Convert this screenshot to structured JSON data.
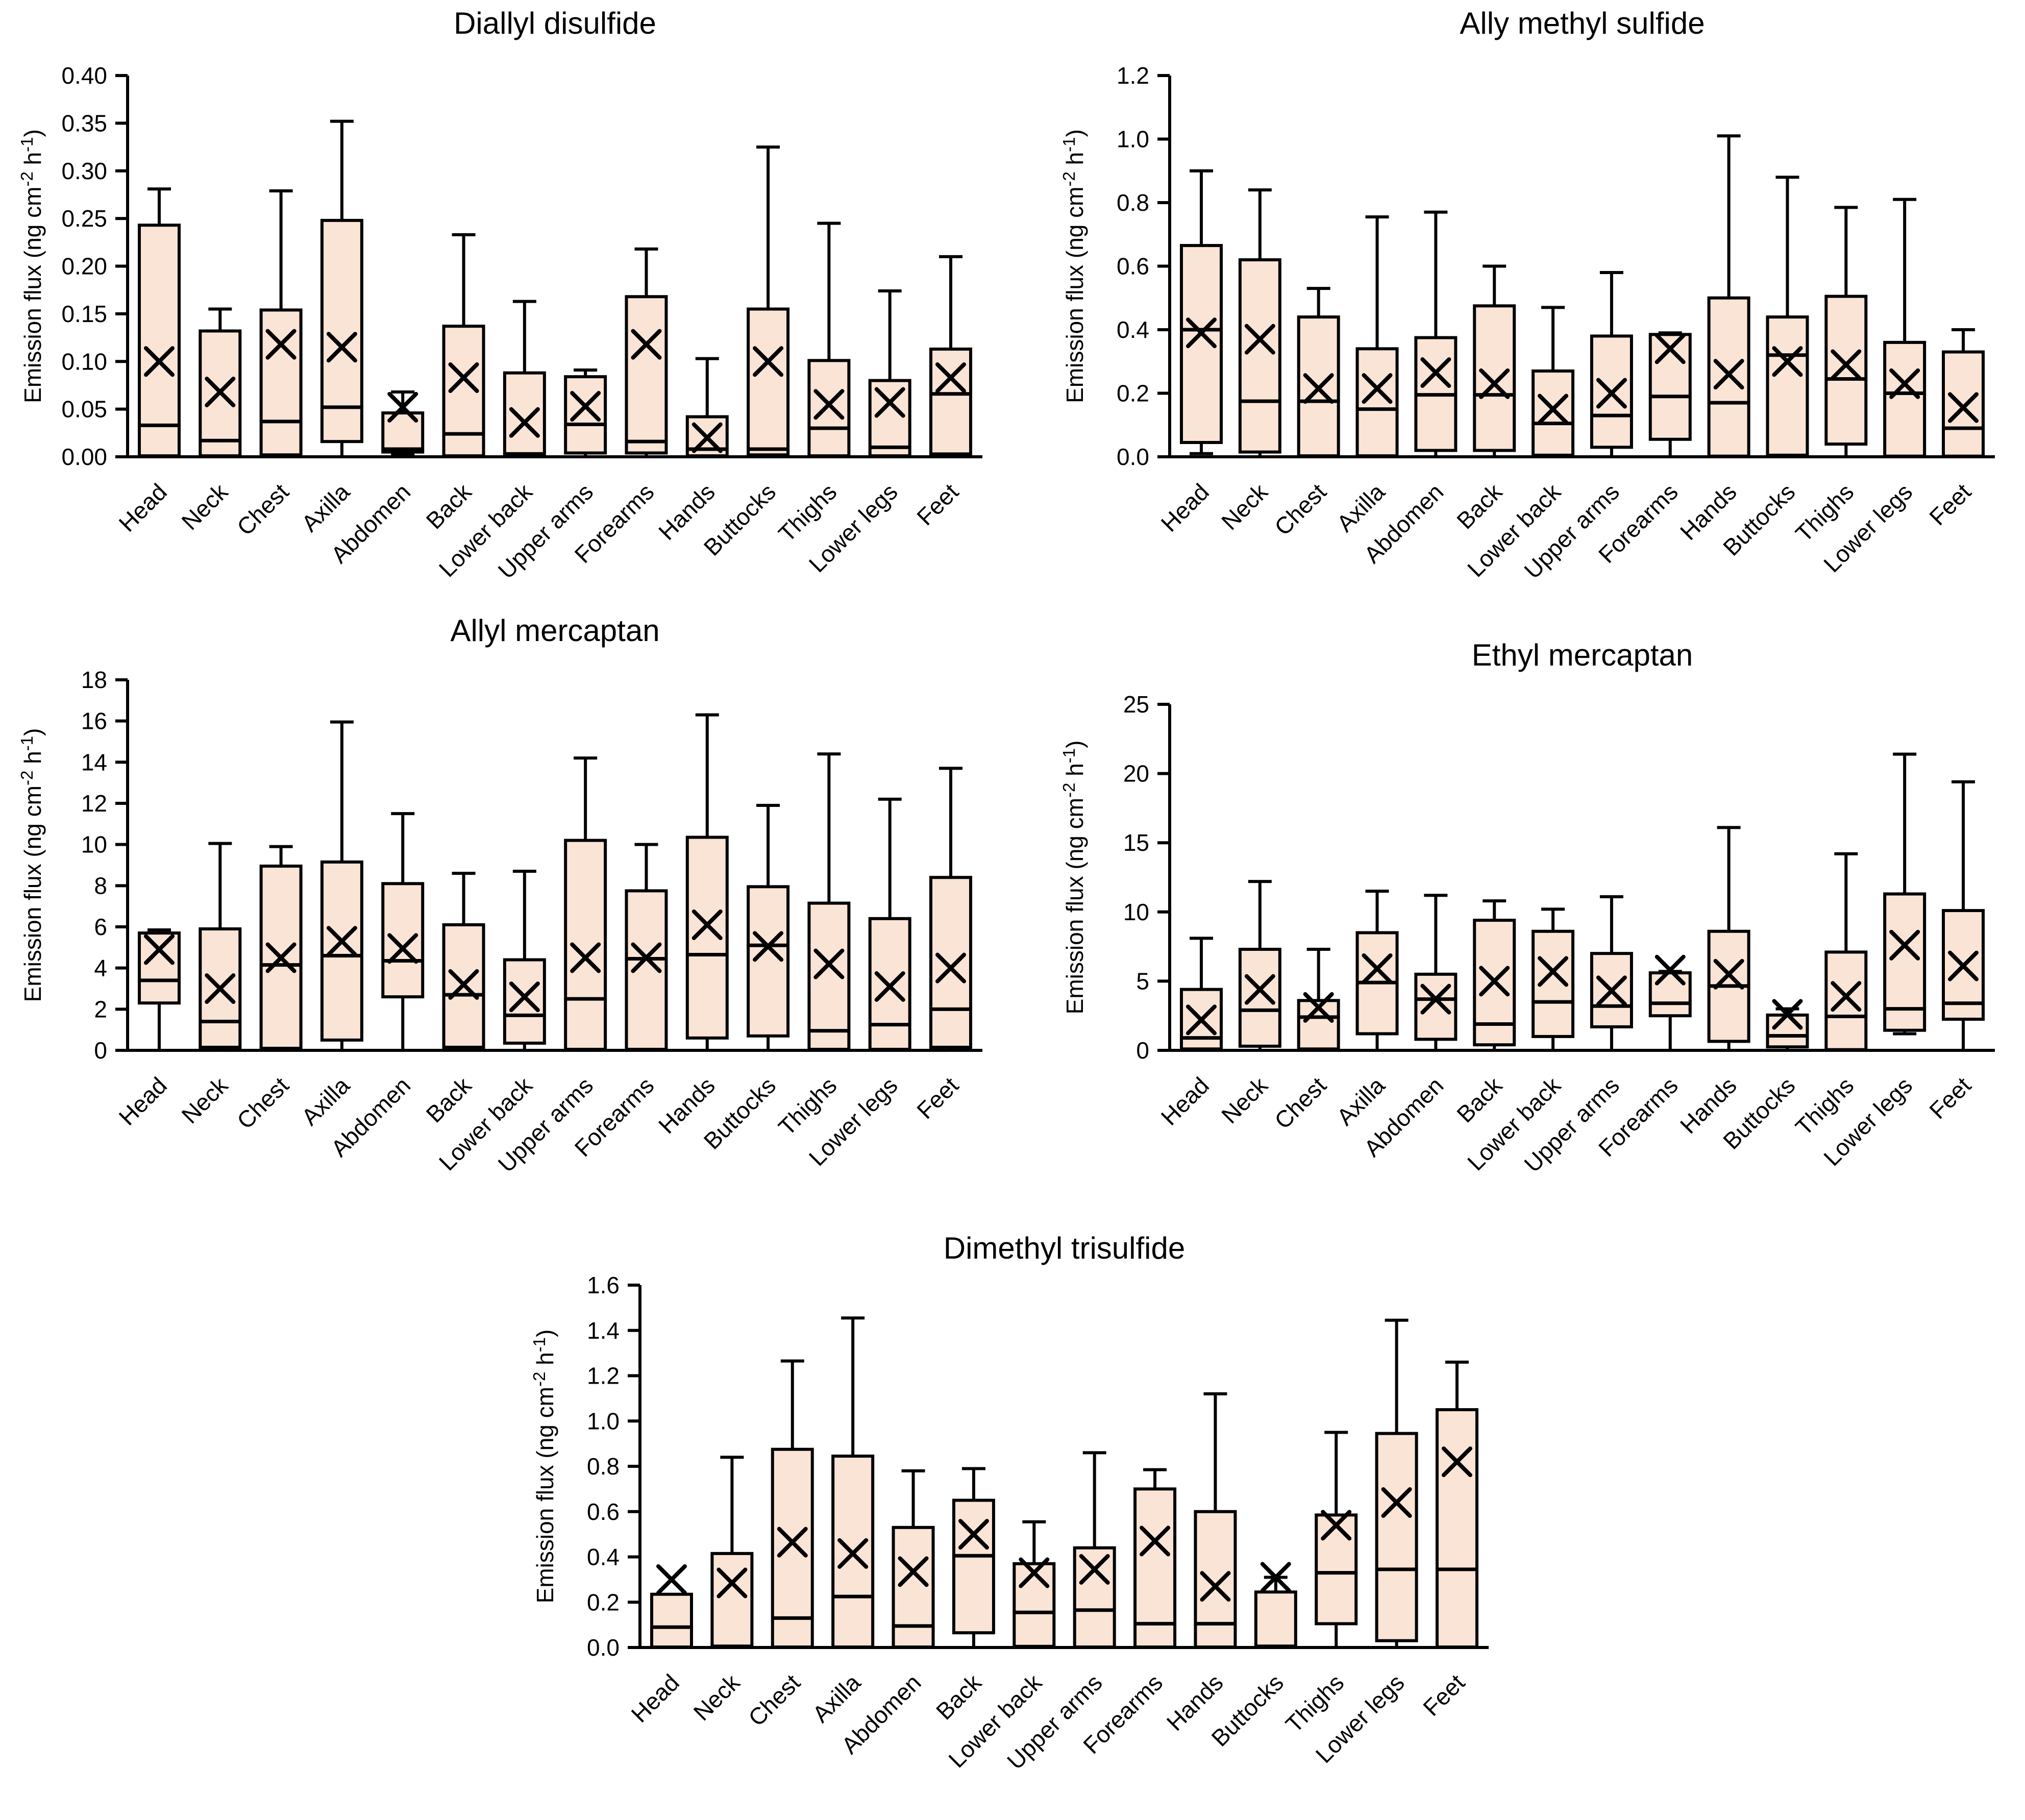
{
  "figure": {
    "background": "#ffffff",
    "box_fill_color": "#fae4d6",
    "line_color": "#000000",
    "ylabel": "Emission flux (ng cm⁻² h⁻¹)"
  },
  "chart_data": {
    "type": "box",
    "note": "Five box-and-whisker panels; each box: lo=lower whisker, q1, med=median, q3, hi=upper whisker, mean=x marker",
    "ylabel": "Emission flux (ng cm⁻² h⁻¹)",
    "categories": [
      "Head",
      "Neck",
      "Chest",
      "Axilla",
      "Abdomen",
      "Back",
      "Lower back",
      "Upper arms",
      "Forearms",
      "Hands",
      "Buttocks",
      "Thighs",
      "Lower legs",
      "Feet"
    ],
    "charts": [
      {
        "id": "diallyl-disulfide",
        "title": "Diallyl disulfide",
        "ylim": [
          0,
          0.4
        ],
        "ytick_step": 0.05,
        "ytick_decimals": 2,
        "grid": false,
        "boxes": [
          {
            "cat": "Head",
            "lo": 0,
            "q1": 0.001,
            "med": 0.033,
            "q3": 0.243,
            "hi": 0.281,
            "mean": 0.1
          },
          {
            "cat": "Neck",
            "lo": 0,
            "q1": 0.001,
            "med": 0.017,
            "q3": 0.132,
            "hi": 0.155,
            "mean": 0.068
          },
          {
            "cat": "Chest",
            "lo": 0,
            "q1": 0.002,
            "med": 0.037,
            "q3": 0.154,
            "hi": 0.279,
            "mean": 0.118
          },
          {
            "cat": "Axilla",
            "lo": 0,
            "q1": 0.016,
            "med": 0.052,
            "q3": 0.248,
            "hi": 0.352,
            "mean": 0.115
          },
          {
            "cat": "Abdomen",
            "lo": 0.002,
            "q1": 0.005,
            "med": 0.008,
            "q3": 0.046,
            "hi": 0.068,
            "mean": 0.052
          },
          {
            "cat": "Back",
            "lo": 0,
            "q1": 0.001,
            "med": 0.024,
            "q3": 0.137,
            "hi": 0.233,
            "mean": 0.083
          },
          {
            "cat": "Lower back",
            "lo": 0,
            "q1": 0.001,
            "med": 0.003,
            "q3": 0.088,
            "hi": 0.163,
            "mean": 0.036
          },
          {
            "cat": "Upper arms",
            "lo": 0,
            "q1": 0.004,
            "med": 0.034,
            "q3": 0.084,
            "hi": 0.091,
            "mean": 0.053
          },
          {
            "cat": "Forearms",
            "lo": 0,
            "q1": 0.004,
            "med": 0.016,
            "q3": 0.168,
            "hi": 0.218,
            "mean": 0.118
          },
          {
            "cat": "Hands",
            "lo": 0,
            "q1": 0.001,
            "med": 0.008,
            "q3": 0.042,
            "hi": 0.103,
            "mean": 0.02
          },
          {
            "cat": "Buttocks",
            "lo": 0,
            "q1": 0.002,
            "med": 0.008,
            "q3": 0.155,
            "hi": 0.325,
            "mean": 0.1
          },
          {
            "cat": "Thighs",
            "lo": 0,
            "q1": 0.001,
            "med": 0.03,
            "q3": 0.101,
            "hi": 0.245,
            "mean": 0.055
          },
          {
            "cat": "Lower legs",
            "lo": 0,
            "q1": 0.001,
            "med": 0.01,
            "q3": 0.08,
            "hi": 0.174,
            "mean": 0.057
          },
          {
            "cat": "Feet",
            "lo": 0,
            "q1": 0.003,
            "med": 0.066,
            "q3": 0.113,
            "hi": 0.21,
            "mean": 0.083
          }
        ]
      },
      {
        "id": "ally-methyl-sulfide",
        "title": "Ally methyl sulfide",
        "ylim": [
          0,
          1.2
        ],
        "ytick_step": 0.2,
        "ytick_decimals": 1,
        "grid": false,
        "boxes": [
          {
            "cat": "Head",
            "lo": 0.01,
            "q1": 0.045,
            "med": 0.4,
            "q3": 0.665,
            "hi": 0.9,
            "mean": 0.39
          },
          {
            "cat": "Neck",
            "lo": 0,
            "q1": 0.015,
            "med": 0.175,
            "q3": 0.62,
            "hi": 0.84,
            "mean": 0.37
          },
          {
            "cat": "Chest",
            "lo": 0,
            "q1": 0.003,
            "med": 0.175,
            "q3": 0.44,
            "hi": 0.53,
            "mean": 0.215
          },
          {
            "cat": "Axilla",
            "lo": 0,
            "q1": 0.003,
            "med": 0.15,
            "q3": 0.34,
            "hi": 0.755,
            "mean": 0.215
          },
          {
            "cat": "Abdomen",
            "lo": 0,
            "q1": 0.02,
            "med": 0.195,
            "q3": 0.375,
            "hi": 0.77,
            "mean": 0.265
          },
          {
            "cat": "Back",
            "lo": 0,
            "q1": 0.02,
            "med": 0.195,
            "q3": 0.475,
            "hi": 0.6,
            "mean": 0.23
          },
          {
            "cat": "Lower back",
            "lo": 0,
            "q1": 0.005,
            "med": 0.105,
            "q3": 0.27,
            "hi": 0.47,
            "mean": 0.15
          },
          {
            "cat": "Upper arms",
            "lo": 0,
            "q1": 0.03,
            "med": 0.13,
            "q3": 0.38,
            "hi": 0.58,
            "mean": 0.2
          },
          {
            "cat": "Forearms",
            "lo": 0,
            "q1": 0.055,
            "med": 0.19,
            "q3": 0.385,
            "hi": 0.39,
            "mean": 0.34
          },
          {
            "cat": "Hands",
            "lo": 0,
            "q1": 0.002,
            "med": 0.17,
            "q3": 0.5,
            "hi": 1.01,
            "mean": 0.26
          },
          {
            "cat": "Buttocks",
            "lo": 0,
            "q1": 0.005,
            "med": 0.32,
            "q3": 0.44,
            "hi": 0.88,
            "mean": 0.3
          },
          {
            "cat": "Thighs",
            "lo": 0,
            "q1": 0.04,
            "med": 0.245,
            "q3": 0.505,
            "hi": 0.785,
            "mean": 0.29
          },
          {
            "cat": "Lower legs",
            "lo": 0,
            "q1": 0.002,
            "med": 0.2,
            "q3": 0.36,
            "hi": 0.81,
            "mean": 0.23
          },
          {
            "cat": "Feet",
            "lo": 0,
            "q1": 0.002,
            "med": 0.09,
            "q3": 0.33,
            "hi": 0.4,
            "mean": 0.155
          }
        ]
      },
      {
        "id": "allyl-mercaptan",
        "title": "Allyl mercaptan",
        "ylim": [
          0,
          18
        ],
        "ytick_step": 2,
        "ytick_decimals": 0,
        "grid": false,
        "boxes": [
          {
            "cat": "Head",
            "lo": 0,
            "q1": 2.3,
            "med": 3.4,
            "q3": 5.7,
            "hi": 5.85,
            "mean": 4.9
          },
          {
            "cat": "Neck",
            "lo": 0,
            "q1": 0.15,
            "med": 1.4,
            "q3": 5.9,
            "hi": 10.05,
            "mean": 3.0
          },
          {
            "cat": "Chest",
            "lo": 0,
            "q1": 0.1,
            "med": 4.15,
            "q3": 8.95,
            "hi": 9.9,
            "mean": 4.5
          },
          {
            "cat": "Axilla",
            "lo": 0,
            "q1": 0.5,
            "med": 4.6,
            "q3": 9.15,
            "hi": 15.95,
            "mean": 5.3
          },
          {
            "cat": "Abdomen",
            "lo": 0,
            "q1": 2.6,
            "med": 4.35,
            "q3": 8.1,
            "hi": 11.5,
            "mean": 4.95
          },
          {
            "cat": "Back",
            "lo": 0,
            "q1": 0.15,
            "med": 2.7,
            "q3": 6.1,
            "hi": 8.6,
            "mean": 3.2
          },
          {
            "cat": "Lower back",
            "lo": 0,
            "q1": 0.35,
            "med": 1.7,
            "q3": 4.4,
            "hi": 8.7,
            "mean": 2.6
          },
          {
            "cat": "Upper arms",
            "lo": 0,
            "q1": 0.05,
            "med": 2.5,
            "q3": 10.2,
            "hi": 14.2,
            "mean": 4.5
          },
          {
            "cat": "Forearms",
            "lo": 0,
            "q1": 0.05,
            "med": 4.45,
            "q3": 7.75,
            "hi": 10.0,
            "mean": 4.5
          },
          {
            "cat": "Hands",
            "lo": 0,
            "q1": 0.6,
            "med": 4.65,
            "q3": 10.35,
            "hi": 16.3,
            "mean": 6.1
          },
          {
            "cat": "Buttocks",
            "lo": 0,
            "q1": 0.7,
            "med": 5.1,
            "q3": 7.95,
            "hi": 11.9,
            "mean": 5.05
          },
          {
            "cat": "Thighs",
            "lo": 0,
            "q1": 0.05,
            "med": 0.95,
            "q3": 7.15,
            "hi": 14.4,
            "mean": 4.2
          },
          {
            "cat": "Lower legs",
            "lo": 0,
            "q1": 0.05,
            "med": 1.25,
            "q3": 6.4,
            "hi": 12.2,
            "mean": 3.1
          },
          {
            "cat": "Feet",
            "lo": 0,
            "q1": 0.15,
            "med": 2.0,
            "q3": 8.4,
            "hi": 13.7,
            "mean": 4.0
          }
        ]
      },
      {
        "id": "ethyl-mercaptan",
        "title": "Ethyl mercaptan",
        "ylim": [
          0,
          25
        ],
        "ytick_step": 5,
        "ytick_decimals": 0,
        "grid": false,
        "boxes": [
          {
            "cat": "Head",
            "lo": 0,
            "q1": 0.1,
            "med": 0.9,
            "q3": 4.4,
            "hi": 8.1,
            "mean": 2.2
          },
          {
            "cat": "Neck",
            "lo": 0,
            "q1": 0.3,
            "med": 2.9,
            "q3": 7.3,
            "hi": 12.2,
            "mean": 4.4
          },
          {
            "cat": "Chest",
            "lo": 0,
            "q1": 0.1,
            "med": 2.4,
            "q3": 3.6,
            "hi": 7.3,
            "mean": 3.1
          },
          {
            "cat": "Axilla",
            "lo": 0,
            "q1": 1.2,
            "med": 4.9,
            "q3": 8.5,
            "hi": 11.5,
            "mean": 5.9
          },
          {
            "cat": "Abdomen",
            "lo": 0,
            "q1": 0.8,
            "med": 3.7,
            "q3": 5.5,
            "hi": 11.2,
            "mean": 3.7
          },
          {
            "cat": "Back",
            "lo": 0,
            "q1": 0.4,
            "med": 1.9,
            "q3": 9.4,
            "hi": 10.8,
            "mean": 5.0
          },
          {
            "cat": "Lower back",
            "lo": 0,
            "q1": 1.0,
            "med": 3.5,
            "q3": 8.6,
            "hi": 10.2,
            "mean": 5.7
          },
          {
            "cat": "Upper arms",
            "lo": 0.05,
            "q1": 1.7,
            "med": 3.2,
            "q3": 7.0,
            "hi": 11.1,
            "mean": 4.3
          },
          {
            "cat": "Forearms",
            "lo": 0,
            "q1": 2.5,
            "med": 3.4,
            "q3": 5.6,
            "hi": 5.7,
            "mean": 5.8
          },
          {
            "cat": "Hands",
            "lo": 0,
            "q1": 0.65,
            "med": 4.65,
            "q3": 8.6,
            "hi": 16.1,
            "mean": 5.5
          },
          {
            "cat": "Buttocks",
            "lo": 0,
            "q1": 0.25,
            "med": 1.05,
            "q3": 2.55,
            "hi": 3.0,
            "mean": 2.6
          },
          {
            "cat": "Thighs",
            "lo": 0,
            "q1": 0.05,
            "med": 2.45,
            "q3": 7.1,
            "hi": 14.2,
            "mean": 3.9
          },
          {
            "cat": "Lower legs",
            "lo": 1.2,
            "q1": 1.45,
            "med": 3.0,
            "q3": 11.3,
            "hi": 21.4,
            "mean": 7.6
          },
          {
            "cat": "Feet",
            "lo": 0.1,
            "q1": 2.25,
            "med": 3.4,
            "q3": 10.1,
            "hi": 19.4,
            "mean": 6.1
          }
        ]
      },
      {
        "id": "dimethyl-trisulfide",
        "title": "Dimethyl trisulfide",
        "ylim": [
          0,
          1.6
        ],
        "ytick_step": 0.2,
        "ytick_decimals": 1,
        "grid": false,
        "boxes": [
          {
            "cat": "Head",
            "lo": 0,
            "q1": 0.002,
            "med": 0.09,
            "q3": 0.235,
            "hi": 0.235,
            "mean": 0.3
          },
          {
            "cat": "Neck",
            "lo": 0,
            "q1": 0.002,
            "med": 0.005,
            "q3": 0.415,
            "hi": 0.84,
            "mean": 0.285
          },
          {
            "cat": "Chest",
            "lo": 0,
            "q1": 0.002,
            "med": 0.13,
            "q3": 0.875,
            "hi": 1.265,
            "mean": 0.465
          },
          {
            "cat": "Axilla",
            "lo": 0,
            "q1": 0.002,
            "med": 0.225,
            "q3": 0.845,
            "hi": 1.455,
            "mean": 0.415
          },
          {
            "cat": "Abdomen",
            "lo": 0,
            "q1": 0.002,
            "med": 0.095,
            "q3": 0.53,
            "hi": 0.78,
            "mean": 0.335
          },
          {
            "cat": "Back",
            "lo": 0,
            "q1": 0.065,
            "med": 0.405,
            "q3": 0.65,
            "hi": 0.79,
            "mean": 0.5
          },
          {
            "cat": "Lower back",
            "lo": 0,
            "q1": 0.005,
            "med": 0.155,
            "q3": 0.37,
            "hi": 0.555,
            "mean": 0.33
          },
          {
            "cat": "Upper arms",
            "lo": 0,
            "q1": 0.002,
            "med": 0.165,
            "q3": 0.44,
            "hi": 0.86,
            "mean": 0.345
          },
          {
            "cat": "Forearms",
            "lo": 0,
            "q1": 0.002,
            "med": 0.105,
            "q3": 0.7,
            "hi": 0.785,
            "mean": 0.47
          },
          {
            "cat": "Hands",
            "lo": 0,
            "q1": 0.002,
            "med": 0.105,
            "q3": 0.6,
            "hi": 1.12,
            "mean": 0.27
          },
          {
            "cat": "Buttocks",
            "lo": 0,
            "q1": 0.002,
            "med": 0.005,
            "q3": 0.245,
            "hi": 0.31,
            "mean": 0.31
          },
          {
            "cat": "Thighs",
            "lo": 0,
            "q1": 0.105,
            "med": 0.33,
            "q3": 0.585,
            "hi": 0.95,
            "mean": 0.54
          },
          {
            "cat": "Lower legs",
            "lo": 0,
            "q1": 0.03,
            "med": 0.345,
            "q3": 0.945,
            "hi": 1.445,
            "mean": 0.64
          },
          {
            "cat": "Feet",
            "lo": 0,
            "q1": 0.002,
            "med": 0.345,
            "q3": 1.05,
            "hi": 1.26,
            "mean": 0.82
          }
        ]
      }
    ]
  }
}
